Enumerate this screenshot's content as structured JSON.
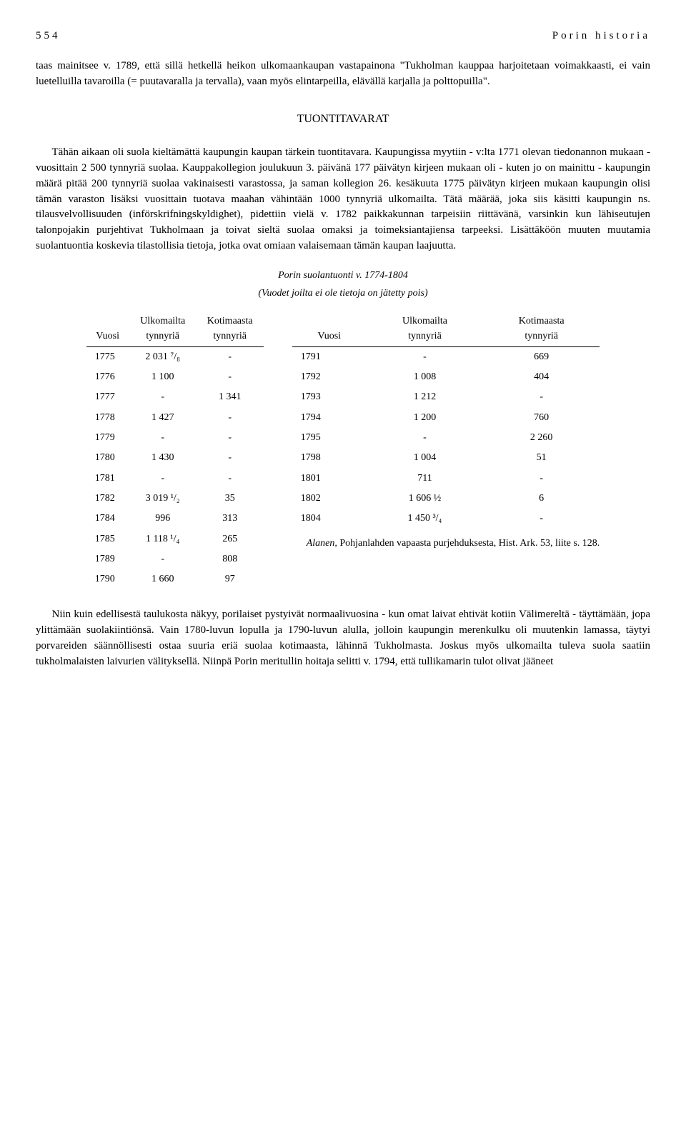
{
  "header": {
    "page_number": "554",
    "running_title": "Porin historia"
  },
  "para1": "taas mainitsee v. 1789, että sillä hetkellä heikon ulkomaankaupan vastapainona \"Tukholman kauppaa harjoitetaan voimakkaasti, ei vain luetelluilla tavaroilla (= puutavaralla ja tervalla), vaan myös elintarpeilla, elävällä karjalla ja polttopuilla\".",
  "section_title": "TUONTITAVARAT",
  "para2": "Tähän aikaan oli suola kieltämättä kaupungin kaupan tärkein tuontitavara. Kaupungissa myytiin - v:lta 1771 olevan tiedonannon mukaan - vuosittain 2 500 tynnyriä suolaa. Kauppakollegion joulukuun 3. päivänä 177 päivätyn kirjeen mukaan oli - kuten jo on mainittu - kaupungin määrä pitää 200 tynnyriä suolaa vakinaisesti varastossa, ja saman kollegion 26. kesäkuuta 1775 päivätyn kirjeen mukaan kaupungin olisi tämän varaston lisäksi vuosittain tuotava maahan vähintään 1000 tynnyriä ulkomailta. Tätä määrää, joka siis käsitti kaupungin ns. tilausvelvollisuuden (införskrifningskyldighet), pidettiin vielä v. 1782 paikkakunnan tarpeisiin riittävänä, varsinkin kun lähiseutujen talonpojakin purjehtivat Tukholmaan ja toivat sieltä suolaa omaksi ja toimeksiantajiensa tarpeeksi. Lisättäköön muuten muutamia suolantuontia koskevia tilastollisia tietoja, jotka ovat omiaan valaisemaan tämän kaupan laajuutta.",
  "table_caption": "Porin suolantuonti v. 1774-1804",
  "table_subcaption": "(Vuodet joilta ei ole tietoja on jätetty pois)",
  "columns": {
    "c1": "Vuosi",
    "c2a": "Ulkomailta",
    "c2b": "tynnyriä",
    "c3a": "Kotimaasta",
    "c3b": "tynnyriä"
  },
  "left_rows": [
    [
      "1775",
      "2 031 ⁷/₈",
      "-"
    ],
    [
      "1776",
      "1 100",
      "-"
    ],
    [
      "1777",
      "-",
      "1 341"
    ],
    [
      "1778",
      "1 427",
      "-"
    ],
    [
      "1779",
      "-",
      "-"
    ],
    [
      "1780",
      "1 430",
      "-"
    ],
    [
      "1781",
      "-",
      "-"
    ],
    [
      "1782",
      "3 019 ¹/₂",
      "35"
    ],
    [
      "1784",
      "996",
      "313"
    ],
    [
      "1785",
      "1 118 ¹/₄",
      "265"
    ],
    [
      "1789",
      "-",
      "808"
    ],
    [
      "1790",
      "1 660",
      "97"
    ]
  ],
  "right_rows": [
    [
      "1791",
      "-",
      "669"
    ],
    [
      "1792",
      "1 008",
      "404"
    ],
    [
      "1793",
      "1 212",
      "-"
    ],
    [
      "1794",
      "1 200",
      "760"
    ],
    [
      "1795",
      "-",
      "2 260"
    ],
    [
      "1798",
      "1 004",
      "51"
    ],
    [
      "1801",
      "711",
      "-"
    ],
    [
      "1802",
      "1 606 ½",
      "6"
    ],
    [
      "1804",
      "1 450 ³/₄",
      "-"
    ]
  ],
  "source": {
    "author": "Alanen,",
    "text": " Pohjanlahden vapaasta purjehduksesta, Hist. Ark. 53, liite s. 128."
  },
  "para3": "Niin kuin edellisestä taulukosta näkyy, porilaiset pystyivät normaalivuosina - kun omat laivat ehtivät kotiin Välimereltä - täyttämään, jopa ylittämään suolakiintiönsä. Vain 1780-luvun lopulla ja 1790-luvun alulla, jolloin kaupungin merenkulku oli muutenkin lamassa, täytyi porvareiden säännöllisesti ostaa suuria eriä suolaa kotimaasta, lähinnä Tukholmasta. Joskus myös ulkomailta tuleva suola saatiin tukholmalaisten laivurien välityksellä. Niinpä Porin meritullin hoitaja selitti v. 1794, että tullikamarin tulot olivat jääneet"
}
